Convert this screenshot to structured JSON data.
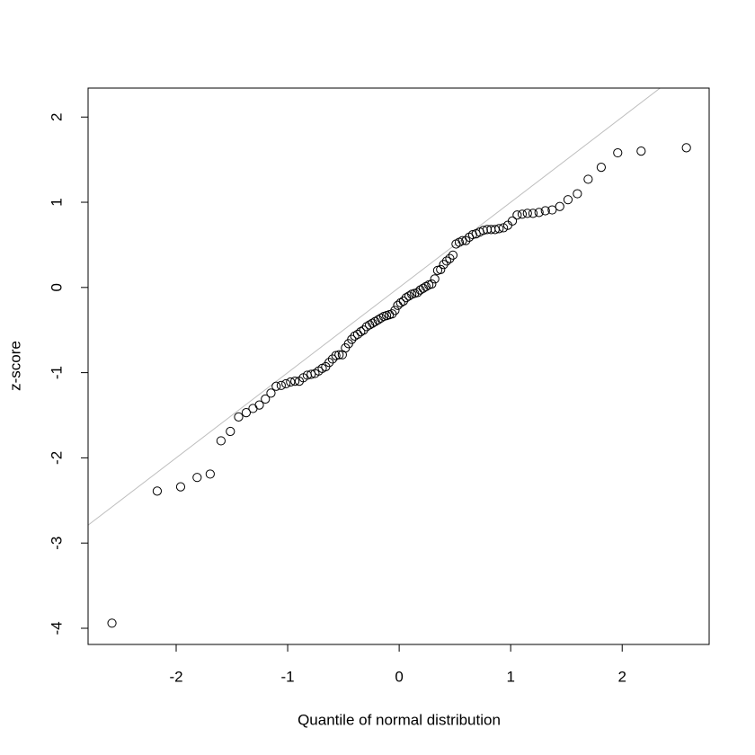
{
  "chart_data": {
    "type": "scatter",
    "x_label": "Quantile of normal distribution",
    "y_label": "z-score",
    "xlim": [
      -2.79,
      2.78
    ],
    "ylim": [
      -4.19,
      2.34
    ],
    "xticks": [
      -2,
      -1,
      0,
      1,
      2
    ],
    "yticks": [
      -4,
      -3,
      -2,
      -1,
      0,
      1,
      2
    ],
    "reference_line": {
      "slope": 1,
      "intercept": 0,
      "color": "#bebebe"
    },
    "series": [
      {
        "color": "#000000",
        "x": [
          -2.576,
          -2.17,
          -1.96,
          -1.812,
          -1.695,
          -1.598,
          -1.514,
          -1.44,
          -1.372,
          -1.311,
          -1.254,
          -1.2,
          -1.15,
          -1.103,
          -1.058,
          -1.015,
          -0.974,
          -0.935,
          -0.896,
          -0.86,
          -0.824,
          -0.789,
          -0.755,
          -0.722,
          -0.69,
          -0.659,
          -0.628,
          -0.598,
          -0.568,
          -0.539,
          -0.51,
          -0.482,
          -0.454,
          -0.426,
          -0.399,
          -0.372,
          -0.345,
          -0.319,
          -0.292,
          -0.266,
          -0.24,
          -0.215,
          -0.189,
          -0.164,
          -0.138,
          -0.113,
          -0.088,
          -0.063,
          -0.038,
          -0.013,
          0.013,
          0.038,
          0.063,
          0.088,
          0.113,
          0.138,
          0.164,
          0.189,
          0.215,
          0.24,
          0.266,
          0.292,
          0.319,
          0.345,
          0.372,
          0.399,
          0.426,
          0.454,
          0.482,
          0.51,
          0.539,
          0.568,
          0.598,
          0.628,
          0.659,
          0.69,
          0.722,
          0.755,
          0.789,
          0.824,
          0.86,
          0.896,
          0.935,
          0.974,
          1.015,
          1.058,
          1.103,
          1.15,
          1.2,
          1.254,
          1.311,
          1.372,
          1.44,
          1.514,
          1.598,
          1.695,
          1.812,
          1.96,
          2.17,
          2.576
        ],
        "values": [
          -3.94,
          -2.39,
          -2.34,
          -2.23,
          -2.19,
          -1.8,
          -1.69,
          -1.52,
          -1.47,
          -1.42,
          -1.38,
          -1.31,
          -1.24,
          -1.16,
          -1.15,
          -1.13,
          -1.11,
          -1.1,
          -1.1,
          -1.06,
          -1.03,
          -1.02,
          -1.01,
          -0.98,
          -0.95,
          -0.93,
          -0.88,
          -0.84,
          -0.8,
          -0.79,
          -0.79,
          -0.71,
          -0.66,
          -0.61,
          -0.57,
          -0.55,
          -0.52,
          -0.5,
          -0.46,
          -0.44,
          -0.42,
          -0.4,
          -0.38,
          -0.36,
          -0.34,
          -0.33,
          -0.32,
          -0.31,
          -0.27,
          -0.21,
          -0.18,
          -0.16,
          -0.12,
          -0.1,
          -0.08,
          -0.07,
          -0.06,
          -0.03,
          -0.01,
          0.01,
          0.03,
          0.04,
          0.1,
          0.2,
          0.21,
          0.27,
          0.31,
          0.34,
          0.38,
          0.51,
          0.53,
          0.55,
          0.55,
          0.59,
          0.62,
          0.63,
          0.65,
          0.67,
          0.68,
          0.68,
          0.68,
          0.69,
          0.7,
          0.73,
          0.78,
          0.85,
          0.86,
          0.87,
          0.87,
          0.88,
          0.9,
          0.91,
          0.95,
          1.03,
          1.1,
          1.27,
          1.41,
          1.58,
          1.6,
          1.64
        ]
      }
    ]
  }
}
